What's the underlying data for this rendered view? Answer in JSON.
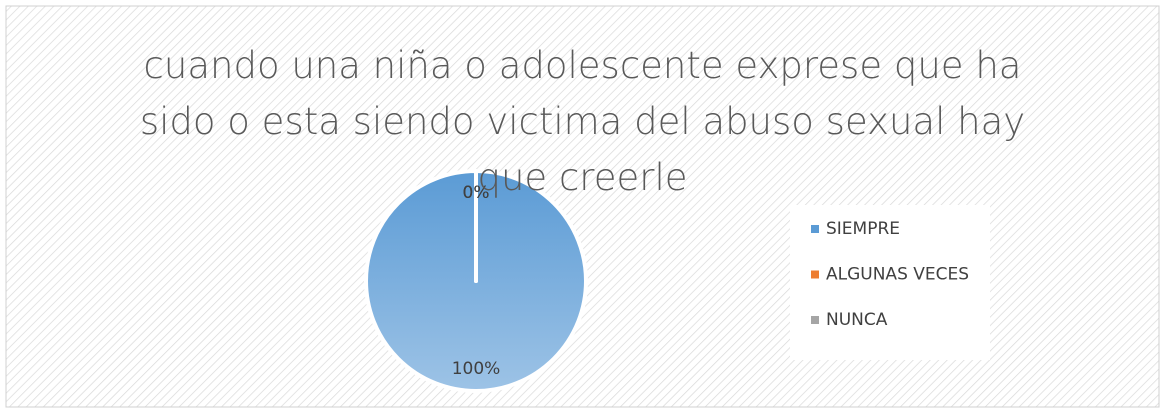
{
  "chart_data": {
    "type": "pie",
    "title": "cuando una niña o adolescente exprese que ha sido o esta siendo victima del abuso sexual hay que creerle",
    "categories": [
      "SIEMPRE",
      "ALGUNAS VECES",
      "NUNCA"
    ],
    "values": [
      100,
      0,
      0
    ],
    "value_labels": [
      "100%",
      "0%",
      "0%"
    ],
    "colors": [
      "#5b9bd5",
      "#ed7d31",
      "#a5a5a5"
    ],
    "legend": "right"
  }
}
